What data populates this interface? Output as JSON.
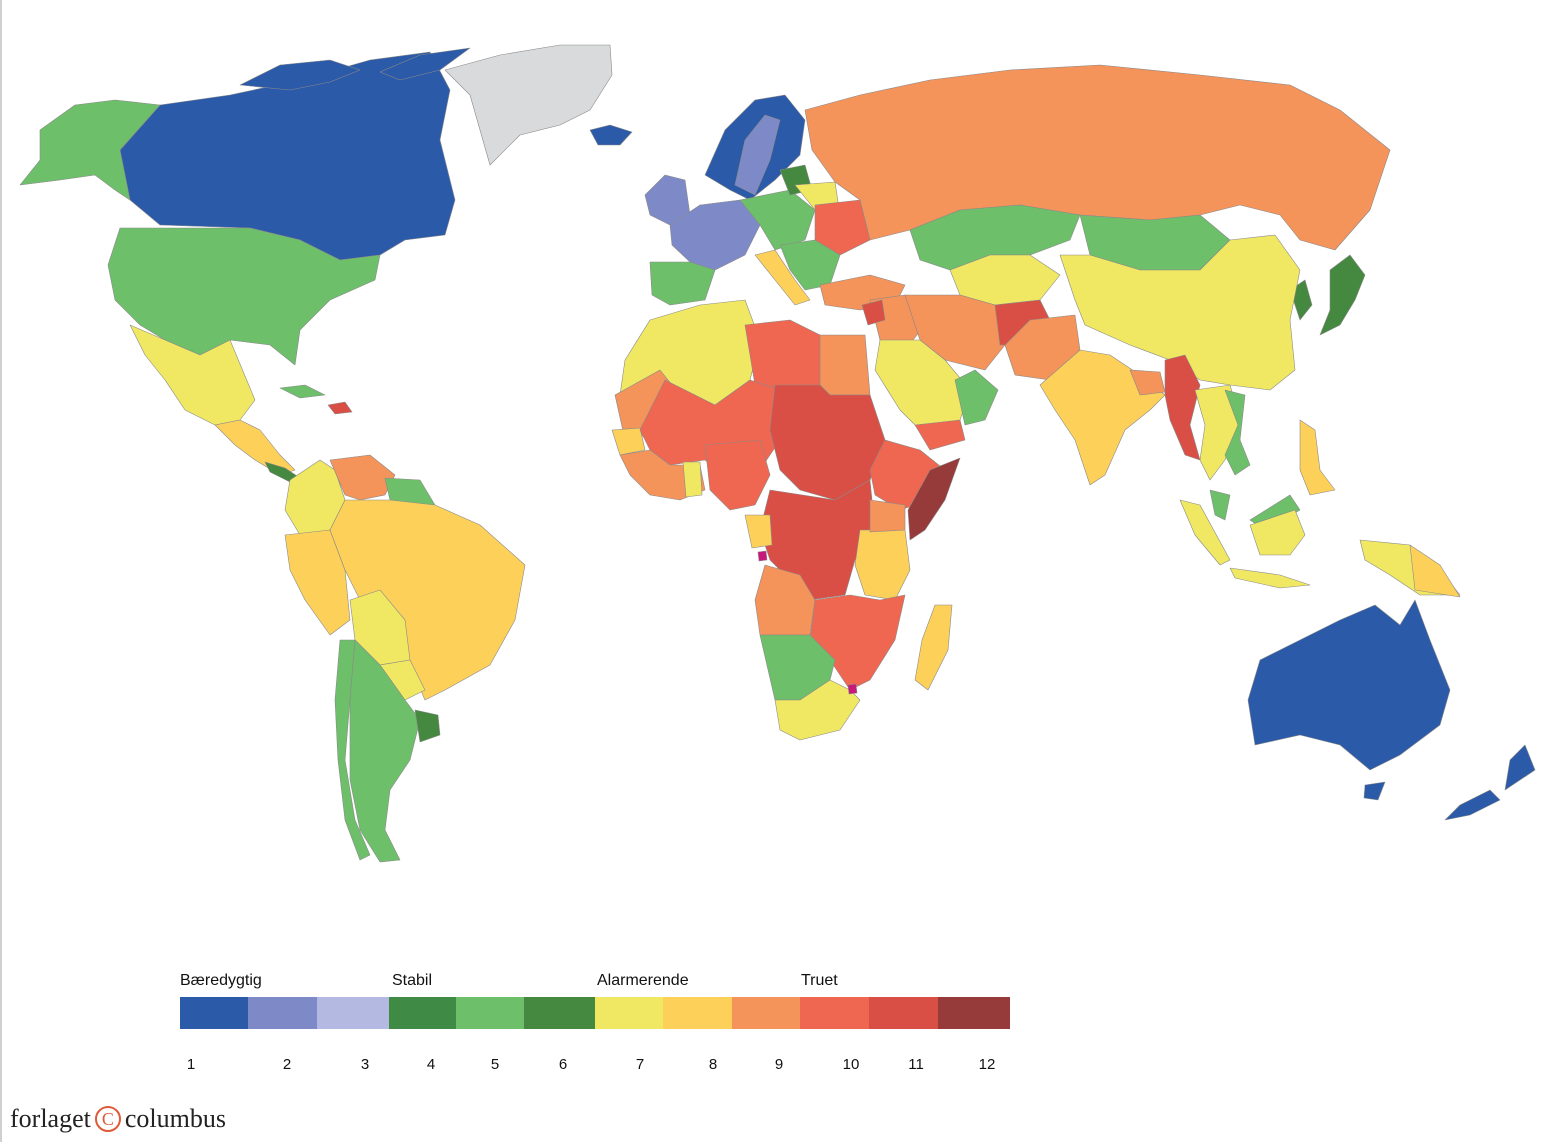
{
  "legend": {
    "categories": [
      {
        "label": "Bæredygtig"
      },
      {
        "label": "Stabil"
      },
      {
        "label": "Alarmerende"
      },
      {
        "label": "Truet"
      }
    ],
    "scale": [
      {
        "value": "1",
        "color": "#2b5aa8"
      },
      {
        "value": "2",
        "color": "#7e8ac8"
      },
      {
        "value": "3",
        "color": "#b3b9e0"
      },
      {
        "value": "4",
        "color": "#3f8a45"
      },
      {
        "value": "5",
        "color": "#6dbf6a"
      },
      {
        "value": "6",
        "color": "#45883f"
      },
      {
        "value": "7",
        "color": "#f0e862"
      },
      {
        "value": "8",
        "color": "#fdd05a"
      },
      {
        "value": "9",
        "color": "#f4935a"
      },
      {
        "value": "10",
        "color": "#ef6750"
      },
      {
        "value": "11",
        "color": "#d94f45"
      },
      {
        "value": "12",
        "color": "#963a3a"
      }
    ],
    "no_data_color": "#d9dadb"
  },
  "publisher": {
    "name_left": "forlaget",
    "name_right": "columbus",
    "logo_glyph": "C"
  }
}
